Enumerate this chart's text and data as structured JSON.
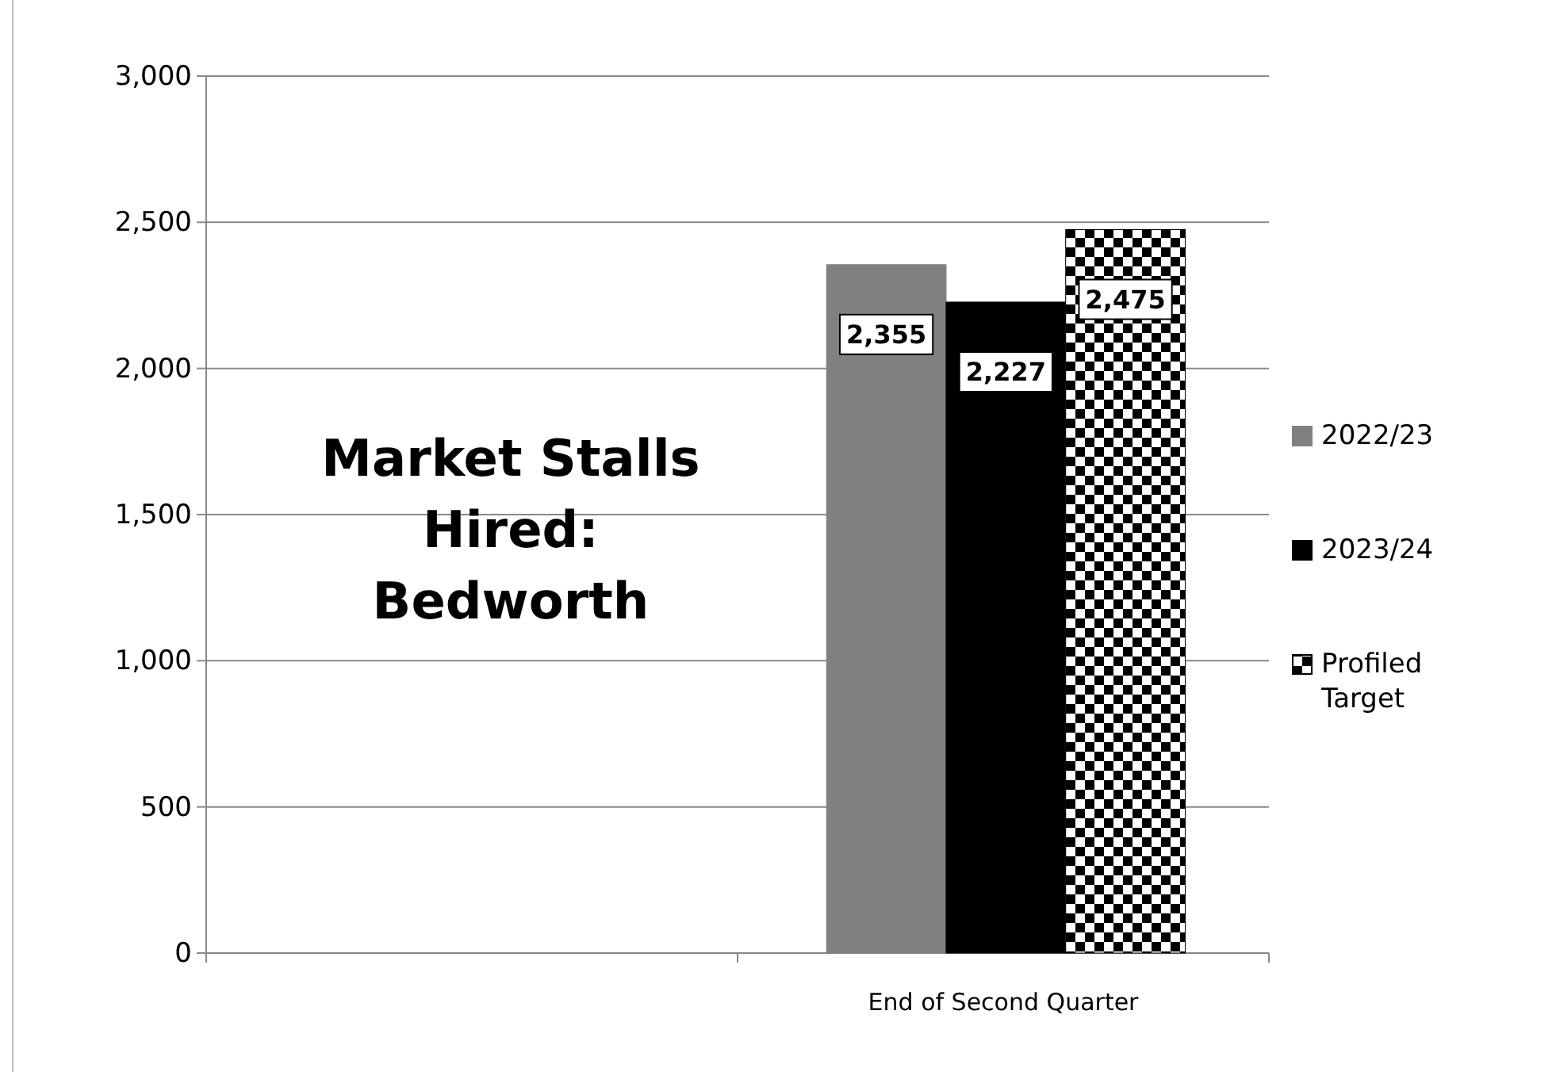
{
  "chart_data": {
    "type": "bar",
    "title": "Market Stalls Hired: Bedworth",
    "categories": [
      null,
      "End of Second Quarter"
    ],
    "series": [
      {
        "name": "2022/23",
        "color": "#808080",
        "values": [
          null,
          2355
        ],
        "value_labels": [
          null,
          "2,355"
        ]
      },
      {
        "name": "2023/24",
        "color": "#000000",
        "values": [
          null,
          2227
        ],
        "value_labels": [
          null,
          "2,227"
        ]
      },
      {
        "name": "Profiled Target",
        "color": "#000000",
        "values": [
          null,
          2475
        ],
        "value_labels": [
          null,
          "2,475"
        ]
      }
    ],
    "ylim": [
      0,
      3000
    ],
    "yticks": [
      {
        "value": 0,
        "label": "0"
      },
      {
        "value": 500,
        "label": "500"
      },
      {
        "value": 1000,
        "label": "1,000"
      },
      {
        "value": 1500,
        "label": "1,500"
      },
      {
        "value": 2000,
        "label": "2,000"
      },
      {
        "value": 2500,
        "label": "2,500"
      },
      {
        "value": 3000,
        "label": "3,000"
      }
    ],
    "grid": "y",
    "legend": "right"
  }
}
